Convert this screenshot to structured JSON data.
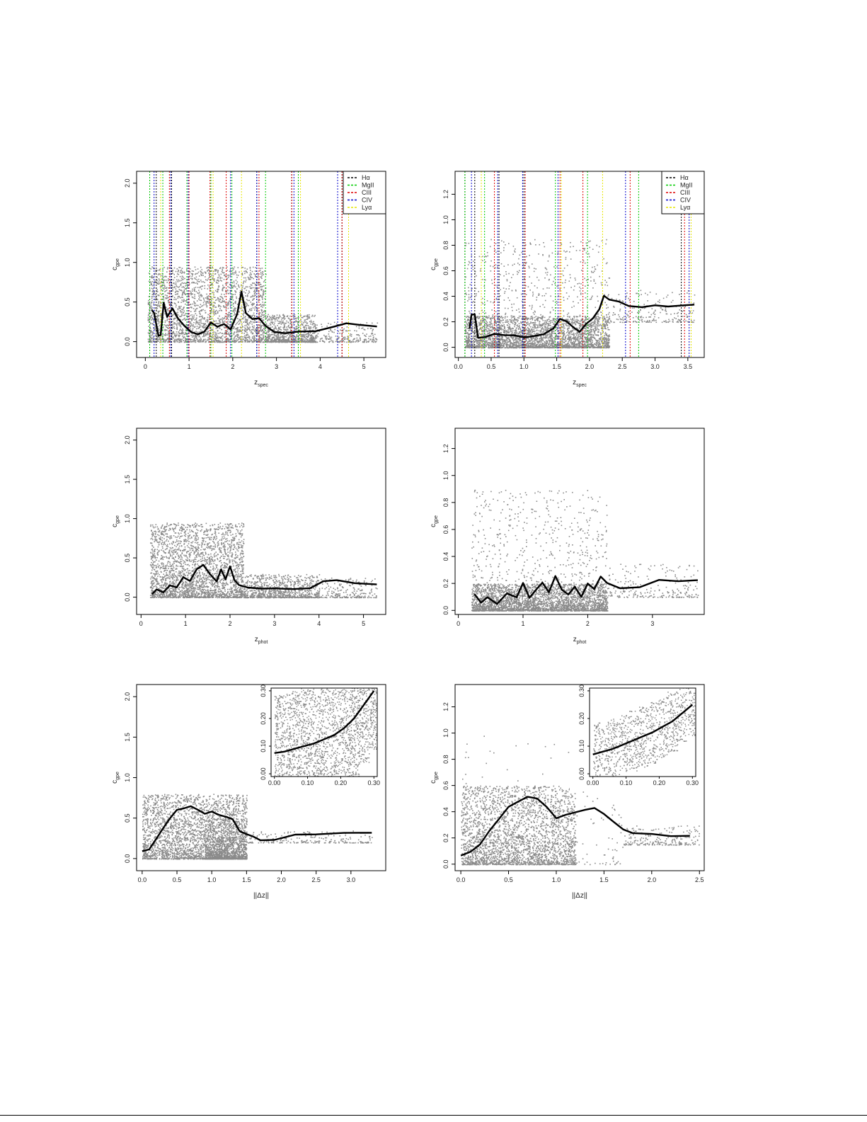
{
  "chart_data": [
    {
      "type": "scatter",
      "xlabel": "z_spec",
      "ylabel": "c_gpe",
      "xlim": [
        -0.2,
        5.5
      ],
      "ylim": [
        -0.2,
        2.15
      ],
      "xticks": [
        "0",
        "1",
        "2",
        "3",
        "4",
        "5"
      ],
      "yticks": [
        "0.0",
        "0.5",
        "1.0",
        "1.5",
        "2.0"
      ],
      "legend": {
        "position": "top-right",
        "entries": [
          {
            "label": "Hα",
            "color": "#000000"
          },
          {
            "label": "MgII",
            "color": "#00cc00"
          },
          {
            "label": "CIII",
            "color": "#dd0000"
          },
          {
            "label": "CIV",
            "color": "#0000cc"
          },
          {
            "label": "Lyα",
            "color": "#e6e600"
          }
        ]
      },
      "vlines": [
        {
          "line": "Hα",
          "color": "#000000",
          "x": [
            0.1,
            0.25,
            0.6,
            2.55,
            3.35,
            4.5
          ]
        },
        {
          "line": "MgII",
          "color": "#00cc00",
          "x": [
            0.1,
            0.4,
            0.95,
            1.5,
            1.98,
            2.75,
            3.5
          ]
        },
        {
          "line": "CIII",
          "color": "#dd0000",
          "x": [
            0.55,
            1.0,
            1.48,
            1.85,
            2.6,
            3.35,
            4.5
          ]
        },
        {
          "line": "CIV",
          "color": "#0000cc",
          "x": [
            0.2,
            0.58,
            0.98,
            1.95,
            2.55,
            3.4,
            4.4
          ]
        },
        {
          "line": "Lyα",
          "color": "#e6e600",
          "x": [
            0.35,
            1.55,
            2.2,
            3.55,
            4.65
          ]
        }
      ],
      "scatter_bands": [
        {
          "x": [
            0.05,
            2.75
          ],
          "y": [
            0.0,
            0.95
          ],
          "density": "dense"
        },
        {
          "x": [
            2.75,
            3.9
          ],
          "y": [
            0.0,
            0.35
          ],
          "density": "medium"
        },
        {
          "x": [
            3.9,
            5.3
          ],
          "y": [
            0.0,
            0.25
          ],
          "density": "sparse"
        }
      ],
      "series": [
        {
          "x": [
            0.15,
            0.2,
            0.3,
            0.35,
            0.42,
            0.5,
            0.62,
            0.75,
            0.9,
            1.05,
            1.2,
            1.35,
            1.5,
            1.65,
            1.8,
            1.95,
            2.1,
            2.2,
            2.3,
            2.45,
            2.6,
            2.75,
            2.95,
            3.2,
            3.5,
            3.9,
            4.3,
            4.6,
            4.9,
            5.3
          ],
          "y": [
            0.4,
            0.35,
            0.07,
            0.08,
            0.5,
            0.3,
            0.42,
            0.3,
            0.2,
            0.12,
            0.1,
            0.12,
            0.25,
            0.18,
            0.22,
            0.15,
            0.35,
            0.62,
            0.35,
            0.28,
            0.3,
            0.2,
            0.12,
            0.1,
            0.12,
            0.13,
            0.18,
            0.23,
            0.2,
            0.19
          ]
        }
      ]
    },
    {
      "type": "scatter",
      "xlabel": "z_spec",
      "ylabel": "c_gpe",
      "xlim": [
        -0.05,
        3.75
      ],
      "ylim": [
        -0.08,
        1.38
      ],
      "xticks": [
        "0.0",
        "0.5",
        "1.0",
        "1.5",
        "2.0",
        "2.5",
        "3.0",
        "3.5"
      ],
      "yticks": [
        "0.0",
        "0.2",
        "0.4",
        "0.6",
        "0.8",
        "1.0",
        "1.2"
      ],
      "legend": {
        "position": "top-right",
        "entries": [
          {
            "label": "Hα",
            "color": "#000000"
          },
          {
            "label": "MgII",
            "color": "#00cc00"
          },
          {
            "label": "CIII",
            "color": "#dd0000"
          },
          {
            "label": "CIV",
            "color": "#0000cc"
          },
          {
            "label": "Lyα",
            "color": "#e6e600"
          }
        ]
      },
      "vlines": [
        {
          "line": "Hα",
          "color": "#000000",
          "x": [
            0.1,
            0.25,
            0.62,
            1.0,
            3.4
          ]
        },
        {
          "line": "MgII",
          "color": "#00cc00",
          "x": [
            0.1,
            0.4,
            1.48,
            1.97,
            2.75
          ]
        },
        {
          "line": "CIII",
          "color": "#dd0000",
          "x": [
            0.55,
            1.02,
            1.55,
            1.9,
            2.62,
            3.45
          ]
        },
        {
          "line": "CIV",
          "color": "#0000cc",
          "x": [
            0.2,
            0.6,
            0.98,
            1.52,
            2.55,
            3.52
          ]
        },
        {
          "line": "Lyα",
          "color": "#e6e600",
          "x": [
            0.35,
            1.57,
            2.2,
            3.55
          ]
        }
      ],
      "scatter_bands": [
        {
          "x": [
            0.1,
            2.3
          ],
          "y": [
            0.0,
            0.85
          ],
          "density": "medium"
        },
        {
          "x": [
            0.1,
            2.3
          ],
          "y": [
            0.0,
            0.25
          ],
          "density": "dense"
        },
        {
          "x": [
            2.3,
            3.6
          ],
          "y": [
            0.2,
            0.45
          ],
          "density": "sparse"
        }
      ],
      "series": [
        {
          "x": [
            0.17,
            0.2,
            0.25,
            0.3,
            0.4,
            0.55,
            0.7,
            0.85,
            1.0,
            1.15,
            1.3,
            1.45,
            1.55,
            1.65,
            1.75,
            1.85,
            1.95,
            2.05,
            2.15,
            2.22,
            2.3,
            2.45,
            2.6,
            2.8,
            3.0,
            3.2,
            3.4,
            3.6
          ],
          "y": [
            0.15,
            0.25,
            0.26,
            0.07,
            0.08,
            0.1,
            0.09,
            0.1,
            0.08,
            0.09,
            0.1,
            0.15,
            0.22,
            0.2,
            0.16,
            0.12,
            0.18,
            0.22,
            0.3,
            0.4,
            0.38,
            0.36,
            0.33,
            0.32,
            0.33,
            0.32,
            0.32,
            0.33
          ]
        }
      ]
    },
    {
      "type": "scatter",
      "xlabel": "z_phot",
      "ylabel": "c_gpe",
      "xlim": [
        -0.1,
        5.5
      ],
      "ylim": [
        -0.22,
        2.15
      ],
      "xticks": [
        "0",
        "1",
        "2",
        "3",
        "4",
        "5"
      ],
      "yticks": [
        "0.0",
        "0.5",
        "1.0",
        "1.5",
        "2.0"
      ],
      "scatter_bands": [
        {
          "x": [
            0.2,
            2.3
          ],
          "y": [
            0.0,
            0.95
          ],
          "density": "dense"
        },
        {
          "x": [
            2.3,
            4.0
          ],
          "y": [
            0.0,
            0.3
          ],
          "density": "medium"
        },
        {
          "x": [
            4.0,
            5.3
          ],
          "y": [
            0.0,
            0.25
          ],
          "density": "sparse"
        }
      ],
      "series": [
        {
          "x": [
            0.25,
            0.35,
            0.5,
            0.65,
            0.8,
            0.95,
            1.1,
            1.25,
            1.4,
            1.55,
            1.7,
            1.8,
            1.9,
            2.0,
            2.1,
            2.2,
            2.4,
            2.7,
            3.0,
            3.4,
            3.8,
            4.1,
            4.4,
            4.8,
            5.3
          ],
          "y": [
            0.05,
            0.1,
            0.05,
            0.15,
            0.12,
            0.25,
            0.2,
            0.35,
            0.42,
            0.3,
            0.2,
            0.35,
            0.22,
            0.4,
            0.22,
            0.15,
            0.12,
            0.1,
            0.12,
            0.1,
            0.12,
            0.2,
            0.21,
            0.18,
            0.16
          ]
        }
      ]
    },
    {
      "type": "scatter",
      "xlabel": "z_phot",
      "ylabel": "c_gpe",
      "xlim": [
        -0.05,
        3.8
      ],
      "ylim": [
        -0.03,
        1.35
      ],
      "xticks": [
        "0",
        "1",
        "2",
        "3"
      ],
      "yticks": [
        "0.0",
        "0.2",
        "0.4",
        "0.6",
        "0.8",
        "1.0",
        "1.2"
      ],
      "scatter_bands": [
        {
          "x": [
            0.2,
            2.3
          ],
          "y": [
            0.0,
            0.9
          ],
          "density": "medium"
        },
        {
          "x": [
            0.2,
            2.3
          ],
          "y": [
            0.0,
            0.2
          ],
          "density": "dense"
        },
        {
          "x": [
            2.3,
            3.7
          ],
          "y": [
            0.1,
            0.35
          ],
          "density": "sparse"
        }
      ],
      "series": [
        {
          "x": [
            0.25,
            0.35,
            0.45,
            0.6,
            0.75,
            0.9,
            1.0,
            1.1,
            1.2,
            1.3,
            1.4,
            1.5,
            1.6,
            1.7,
            1.8,
            1.9,
            2.0,
            2.1,
            2.2,
            2.3,
            2.5,
            2.8,
            3.1,
            3.4,
            3.7
          ],
          "y": [
            0.12,
            0.05,
            0.1,
            0.05,
            0.12,
            0.1,
            0.2,
            0.1,
            0.15,
            0.2,
            0.14,
            0.25,
            0.15,
            0.12,
            0.18,
            0.1,
            0.2,
            0.16,
            0.25,
            0.2,
            0.16,
            0.17,
            0.22,
            0.22,
            0.22
          ]
        }
      ]
    },
    {
      "type": "scatter",
      "xlabel": "||Δz||",
      "ylabel": "c_gpe",
      "xlim": [
        -0.08,
        3.5
      ],
      "ylim": [
        -0.15,
        2.15
      ],
      "xticks": [
        "0.0",
        "0.5",
        "1.0",
        "1.5",
        "2.0",
        "2.5",
        "3.0"
      ],
      "yticks": [
        "0.0",
        "0.5",
        "1.0",
        "1.5",
        "2.0"
      ],
      "scatter_bands": [
        {
          "x": [
            0.0,
            1.5
          ],
          "y": [
            0.0,
            0.8
          ],
          "density": "dense"
        },
        {
          "x": [
            0.9,
            1.5
          ],
          "y": [
            0.0,
            0.5
          ],
          "density": "medium"
        },
        {
          "x": [
            1.5,
            3.3
          ],
          "y": [
            0.2,
            0.35
          ],
          "density": "sparse"
        }
      ],
      "series": [
        {
          "x": [
            0.0,
            0.1,
            0.2,
            0.3,
            0.4,
            0.5,
            0.6,
            0.7,
            0.8,
            0.9,
            1.0,
            1.1,
            1.2,
            1.3,
            1.4,
            1.5,
            1.6,
            1.7,
            1.9,
            2.2,
            2.5,
            2.9,
            3.3
          ],
          "y": [
            0.08,
            0.12,
            0.25,
            0.38,
            0.5,
            0.6,
            0.63,
            0.65,
            0.6,
            0.56,
            0.58,
            0.54,
            0.52,
            0.48,
            0.35,
            0.3,
            0.26,
            0.22,
            0.24,
            0.29,
            0.3,
            0.31,
            0.31
          ]
        }
      ],
      "inset": {
        "xlim": [
          -0.01,
          0.31
        ],
        "ylim": [
          -0.01,
          0.31
        ],
        "xticks": [
          "0.00",
          "0.10",
          "0.20",
          "0.30"
        ],
        "yticks": [
          "0.00",
          "0.10",
          "0.20",
          "0.30"
        ],
        "series": [
          {
            "x": [
              0.0,
              0.03,
              0.06,
              0.09,
              0.12,
              0.15,
              0.18,
              0.21,
              0.24,
              0.27,
              0.3
            ],
            "y": [
              0.075,
              0.08,
              0.09,
              0.1,
              0.11,
              0.125,
              0.14,
              0.165,
              0.2,
              0.25,
              0.3
            ]
          }
        ]
      }
    },
    {
      "type": "scatter",
      "xlabel": "||Δz||",
      "ylabel": "c_gpe",
      "xlim": [
        -0.06,
        2.55
      ],
      "ylim": [
        -0.05,
        1.37
      ],
      "xticks": [
        "0.0",
        "0.5",
        "1.0",
        "1.5",
        "2.0",
        "2.5"
      ],
      "yticks": [
        "0.0",
        "0.2",
        "0.4",
        "0.6",
        "0.8",
        "1.0",
        "1.2"
      ],
      "scatter_bands": [
        {
          "x": [
            0.0,
            1.2
          ],
          "y": [
            0.0,
            0.6
          ],
          "density": "dense"
        },
        {
          "x": [
            0.0,
            1.7
          ],
          "y": [
            0.0,
            1.0
          ],
          "density": "sparse"
        },
        {
          "x": [
            1.7,
            2.5
          ],
          "y": [
            0.15,
            0.3
          ],
          "density": "sparse"
        }
      ],
      "series": [
        {
          "x": [
            0.0,
            0.1,
            0.2,
            0.3,
            0.4,
            0.5,
            0.6,
            0.7,
            0.8,
            0.9,
            1.0,
            1.1,
            1.2,
            1.3,
            1.4,
            1.5,
            1.6,
            1.7,
            1.8,
            2.0,
            2.2,
            2.4
          ],
          "y": [
            0.07,
            0.1,
            0.15,
            0.25,
            0.35,
            0.44,
            0.48,
            0.52,
            0.5,
            0.44,
            0.35,
            0.38,
            0.4,
            0.42,
            0.43,
            0.38,
            0.32,
            0.27,
            0.24,
            0.23,
            0.22,
            0.22
          ]
        }
      ],
      "inset": {
        "xlim": [
          -0.01,
          0.31
        ],
        "ylim": [
          -0.01,
          0.31
        ],
        "xticks": [
          "0.00",
          "0.10",
          "0.20",
          "0.30"
        ],
        "yticks": [
          "0.00",
          "0.10",
          "0.20",
          "0.30"
        ],
        "series": [
          {
            "x": [
              0.0,
              0.03,
              0.06,
              0.09,
              0.12,
              0.15,
              0.18,
              0.21,
              0.24,
              0.27,
              0.3
            ],
            "y": [
              0.07,
              0.08,
              0.09,
              0.105,
              0.12,
              0.135,
              0.15,
              0.17,
              0.19,
              0.22,
              0.25
            ]
          }
        ]
      }
    }
  ]
}
